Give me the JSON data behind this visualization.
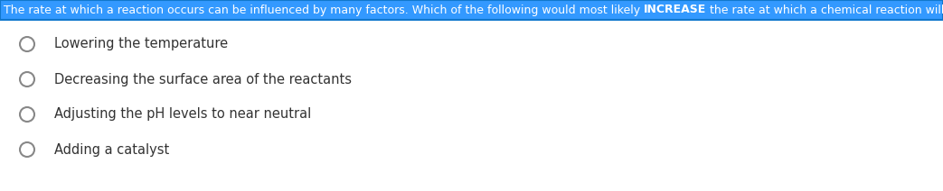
{
  "question_before": "The rate at which a reaction occurs can be influenced by many factors. Which of the following would most likely ",
  "question_bold": "INCREASE",
  "question_after": " the rate at which a chemical reaction will proceed?",
  "options": [
    "Lowering the temperature",
    "Decreasing the surface area of the reactants",
    "Adjusting the pH levels to near neutral",
    "Adding a catalyst"
  ],
  "header_bg_color": "#3399FF",
  "header_text_color": "#FFFFFF",
  "header_border_color": "#1177CC",
  "option_text_color": "#333333",
  "bg_color": "#FFFFFF",
  "circle_edge_color": "#888888",
  "question_fontsize": 9.0,
  "option_fontsize": 10.5,
  "fig_width": 10.43,
  "fig_height": 2.12,
  "dpi": 100
}
